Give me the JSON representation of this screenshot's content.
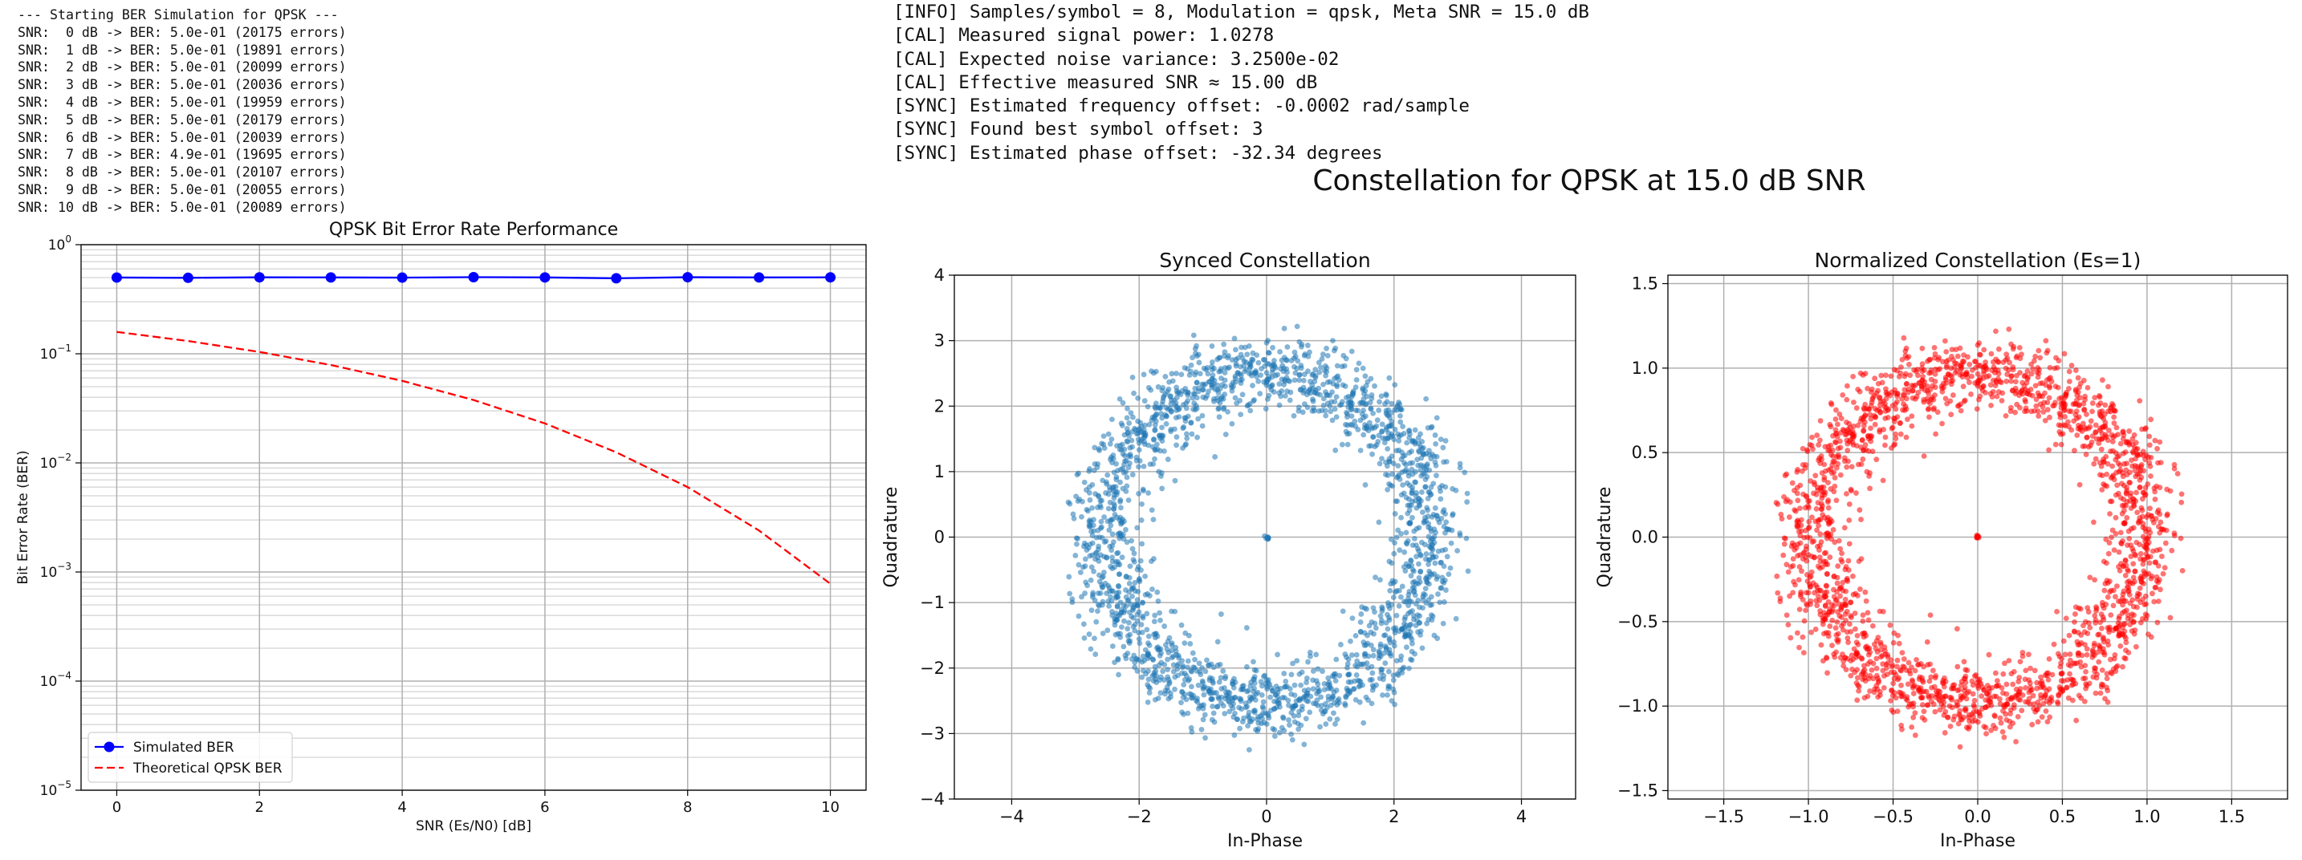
{
  "log_left": [
    "--- Starting BER Simulation for QPSK ---",
    "SNR:  0 dB -> BER: 5.0e-01 (20175 errors)",
    "SNR:  1 dB -> BER: 5.0e-01 (19891 errors)",
    "SNR:  2 dB -> BER: 5.0e-01 (20099 errors)",
    "SNR:  3 dB -> BER: 5.0e-01 (20036 errors)",
    "SNR:  4 dB -> BER: 5.0e-01 (19959 errors)",
    "SNR:  5 dB -> BER: 5.0e-01 (20179 errors)",
    "SNR:  6 dB -> BER: 5.0e-01 (20039 errors)",
    "SNR:  7 dB -> BER: 4.9e-01 (19695 errors)",
    "SNR:  8 dB -> BER: 5.0e-01 (20107 errors)",
    "SNR:  9 dB -> BER: 5.0e-01 (20055 errors)",
    "SNR: 10 dB -> BER: 5.0e-01 (20089 errors)"
  ],
  "log_right": [
    "[INFO] Samples/symbol = 8, Modulation = qpsk, Meta SNR = 15.0 dB",
    "[CAL] Measured signal power: 1.0278",
    "[CAL] Expected noise variance: 3.2500e-02",
    "[CAL] Effective measured SNR ≈ 15.00 dB",
    "[SYNC] Estimated frequency offset: -0.0002 rad/sample",
    "[SYNC] Found best symbol offset: 3",
    "[SYNC] Estimated phase offset: -32.34 degrees"
  ],
  "suptitle": "Constellation for QPSK at 15.0 dB SNR",
  "chart_data": [
    {
      "type": "line",
      "title": "QPSK Bit Error Rate Performance",
      "xlabel": "SNR (Es/N0) [dB]",
      "ylabel": "Bit Error Rate (BER)",
      "y_scale": "log",
      "xlim": [
        -0.5,
        10.5
      ],
      "ylim": [
        1e-05,
        1
      ],
      "x_ticks": [
        0,
        2,
        4,
        6,
        8,
        10
      ],
      "y_tick_labels": [
        "10^0",
        "10^-1",
        "10^-2",
        "10^-3",
        "10^-4",
        "10^-5"
      ],
      "grid": true,
      "legend_position": "lower-left",
      "x": [
        0,
        1,
        2,
        3,
        4,
        5,
        6,
        7,
        8,
        9,
        10
      ],
      "series": [
        {
          "name": "Simulated BER",
          "style": "solid-marker",
          "color": "#0000ff",
          "values": [
            0.5,
            0.497,
            0.502,
            0.501,
            0.499,
            0.504,
            0.501,
            0.492,
            0.503,
            0.501,
            0.502
          ]
        },
        {
          "name": "Theoretical QPSK BER",
          "style": "dashed",
          "color": "#ff0000",
          "values": [
            0.1587,
            0.1309,
            0.104,
            0.0789,
            0.0565,
            0.0377,
            0.023,
            0.0125,
            0.006,
            0.0024,
            0.00078
          ]
        }
      ]
    },
    {
      "type": "scatter",
      "title": "Synced Constellation",
      "xlabel": "In-Phase",
      "ylabel": "Quadrature",
      "xlim": [
        -4.9,
        4.85
      ],
      "ylim": [
        -4,
        4
      ],
      "x_ticks": [
        -4,
        -2,
        0,
        2,
        4
      ],
      "y_ticks": [
        -4,
        -3,
        -2,
        -1,
        0,
        1,
        2,
        3,
        4
      ],
      "grid": true,
      "color": "#1f77b4",
      "ring_radius_mean": 2.55,
      "ring_radius_std": 0.28,
      "outer_extent": 3.3,
      "center_point": [
        0,
        0
      ]
    },
    {
      "type": "scatter",
      "title": "Normalized Constellation (Es=1)",
      "xlabel": "In-Phase",
      "ylabel": "Quadrature",
      "xlim": [
        -1.83,
        1.83
      ],
      "ylim": [
        -1.55,
        1.55
      ],
      "x_ticks": [
        -1.5,
        -1.0,
        -0.5,
        0.0,
        0.5,
        1.0,
        1.5
      ],
      "y_ticks": [
        -1.5,
        -1.0,
        -0.5,
        0.0,
        0.5,
        1.0,
        1.5
      ],
      "grid": true,
      "color": "#ff0000",
      "ring_radius_mean": 0.98,
      "ring_radius_std": 0.105,
      "outer_extent": 1.27,
      "center_point": [
        0,
        0
      ]
    }
  ]
}
